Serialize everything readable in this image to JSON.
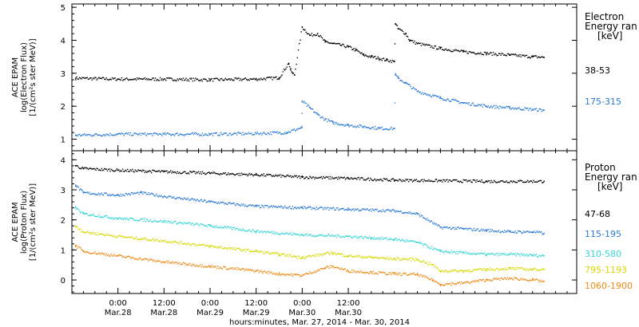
{
  "chart_data": [
    {
      "type": "scatter",
      "panel": "electron",
      "ylabel": [
        "ACE EPAM",
        "log(Electron Flux)",
        "[1/(cm²s ster MeV)]"
      ],
      "yticks": [
        "1",
        "2",
        "3",
        "4",
        "5"
      ],
      "ylim": [
        0.65,
        5.1
      ],
      "legend_title": [
        "Electron",
        "Energy ran",
        "[keV]"
      ],
      "series": [
        {
          "name": "38-53",
          "color": "#000000",
          "values_hours": [
            -11,
            0,
            12,
            24,
            36,
            42,
            44.5,
            45,
            45.5,
            46,
            48,
            50,
            52,
            54,
            56,
            58,
            60,
            62,
            64,
            66,
            68,
            70,
            72,
            72.3,
            73,
            75,
            76,
            78,
            84,
            90,
            96,
            102,
            108,
            111
          ],
          "values": [
            2.85,
            2.82,
            2.82,
            2.8,
            2.82,
            2.86,
            3.3,
            3.1,
            3.0,
            2.95,
            4.4,
            4.15,
            4.2,
            3.95,
            3.9,
            3.85,
            3.8,
            3.7,
            3.55,
            3.5,
            3.45,
            3.4,
            3.35,
            4.5,
            4.35,
            4.2,
            4.0,
            3.9,
            3.75,
            3.65,
            3.6,
            3.55,
            3.5,
            3.48
          ]
        },
        {
          "name": "175-315",
          "color": "#2a7ad6",
          "values_hours": [
            -11,
            0,
            12,
            24,
            36,
            44,
            47.9,
            48,
            50,
            52,
            54,
            56,
            60,
            64,
            68,
            72,
            72.3,
            73,
            75,
            78,
            84,
            90,
            96,
            102,
            108,
            111
          ],
          "values": [
            1.12,
            1.15,
            1.15,
            1.15,
            1.17,
            1.2,
            1.35,
            2.15,
            1.95,
            1.75,
            1.6,
            1.5,
            1.42,
            1.38,
            1.33,
            1.32,
            2.95,
            2.85,
            2.7,
            2.45,
            2.25,
            2.1,
            2.0,
            1.95,
            1.9,
            1.88
          ]
        }
      ]
    },
    {
      "type": "scatter",
      "panel": "proton",
      "ylabel": [
        "ACE EPAM",
        "log(Proton Flux)",
        "[1/(cm²s ster MeV)]"
      ],
      "yticks": [
        "0",
        "1",
        "2",
        "3",
        "4"
      ],
      "ylim": [
        -0.45,
        4.3
      ],
      "legend_title": [
        "Proton",
        "Energy ran",
        "[keV]"
      ],
      "series": [
        {
          "name": "47-68",
          "color": "#000000",
          "values_hours": [
            -11,
            -9,
            0,
            12,
            24,
            36,
            48,
            60,
            72,
            84,
            96,
            111
          ],
          "values": [
            3.8,
            3.7,
            3.65,
            3.6,
            3.55,
            3.5,
            3.42,
            3.38,
            3.32,
            3.3,
            3.28,
            3.28
          ]
        },
        {
          "name": "115-195",
          "color": "#2a7ad6",
          "values_hours": [
            -11,
            -9,
            0,
            6,
            12,
            24,
            36,
            48,
            60,
            72,
            78,
            84,
            90,
            96,
            102,
            108,
            111
          ],
          "values": [
            3.15,
            2.9,
            2.82,
            2.9,
            2.78,
            2.6,
            2.45,
            2.4,
            2.35,
            2.3,
            2.2,
            1.75,
            1.7,
            1.65,
            1.6,
            1.6,
            1.55
          ]
        },
        {
          "name": "310-580",
          "color": "#36d6d6",
          "values_hours": [
            -11,
            -9,
            0,
            12,
            24,
            36,
            48,
            60,
            66,
            72,
            78,
            84,
            90,
            96,
            102,
            108,
            111
          ],
          "values": [
            2.4,
            2.2,
            2.05,
            1.95,
            1.8,
            1.62,
            1.5,
            1.45,
            1.4,
            1.35,
            1.25,
            0.95,
            0.9,
            0.85,
            0.85,
            0.82,
            0.8
          ]
        },
        {
          "name": "795-1193",
          "color": "#d8d800",
          "values_hours": [
            -11,
            -9,
            0,
            12,
            24,
            36,
            42,
            48,
            56,
            60,
            66,
            72,
            78,
            82,
            84,
            90,
            96,
            102,
            108,
            111
          ],
          "values": [
            1.8,
            1.6,
            1.45,
            1.3,
            1.12,
            0.95,
            0.85,
            0.75,
            0.9,
            0.8,
            0.75,
            0.7,
            0.68,
            0.5,
            0.3,
            0.3,
            0.35,
            0.38,
            0.35,
            0.35
          ]
        },
        {
          "name": "1060-1900",
          "color": "#f08a14",
          "values_hours": [
            -11,
            -9,
            0,
            12,
            24,
            36,
            42,
            48,
            54,
            56,
            60,
            66,
            72,
            78,
            82,
            84,
            90,
            96,
            102,
            108,
            111
          ],
          "values": [
            1.15,
            0.95,
            0.8,
            0.6,
            0.45,
            0.3,
            0.2,
            0.15,
            0.4,
            0.45,
            0.3,
            0.25,
            0.2,
            0.18,
            0.0,
            -0.15,
            -0.1,
            0.0,
            0.05,
            0.0,
            -0.05
          ]
        }
      ]
    }
  ],
  "x_axis": {
    "label": "hours:minutes, Mar. 27, 2014 - Mar. 30, 2014",
    "ticks": [
      {
        "hours": 0,
        "time": "0:00",
        "date": "Mar.28"
      },
      {
        "hours": 12,
        "time": "12:00",
        "date": "Mar.28"
      },
      {
        "hours": 24,
        "time": "0:00",
        "date": "Mar.29"
      },
      {
        "hours": 36,
        "time": "12:00",
        "date": "Mar.29"
      },
      {
        "hours": 48,
        "time": "0:00",
        "date": "Mar.30"
      },
      {
        "hours": 60,
        "time": "12:00",
        "date": "Mar.30"
      }
    ],
    "range_hours": [
      -12,
      119.5
    ]
  }
}
